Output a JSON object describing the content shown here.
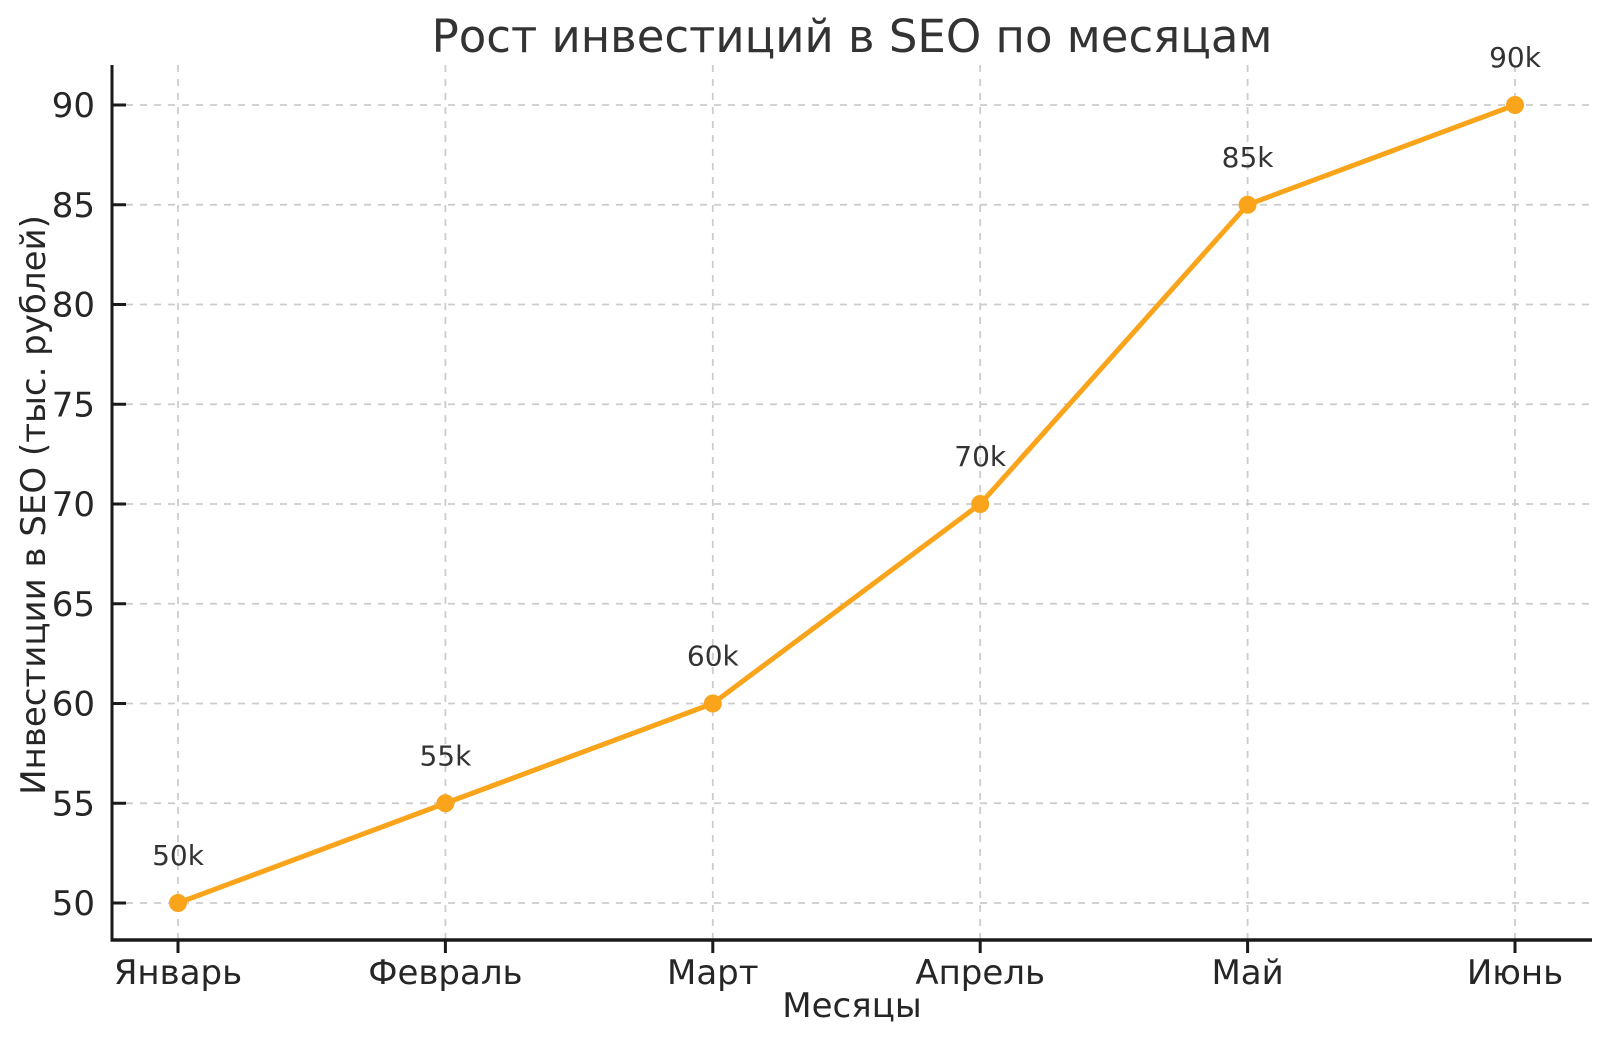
{
  "figure": {
    "title": "Рост инвестиций в SEO по месяцам",
    "xlabel": "Месяцы",
    "ylabel": "Инвестиции в SEO (тыс. рублей)"
  },
  "chart_data": {
    "type": "line",
    "title": "Рост инвестиций в SEO по месяцам",
    "xlabel": "Месяцы",
    "ylabel": "Инвестиции в SEO (тыс. рублей)",
    "categories": [
      "Январь",
      "Февраль",
      "Март",
      "Апрель",
      "Май",
      "Июнь"
    ],
    "series": [
      {
        "name": "Инвестиции в SEO",
        "values": [
          50,
          55,
          60,
          70,
          85,
          90
        ]
      }
    ],
    "point_labels": [
      "50k",
      "55k",
      "60k",
      "70k",
      "85k",
      "90k"
    ],
    "yticks": [
      50,
      55,
      60,
      65,
      70,
      75,
      80,
      85,
      90
    ],
    "ylim": [
      48.2,
      92.1
    ],
    "grid": true,
    "grid_style": "dashed",
    "legend_position": "none",
    "colors": {
      "line": "#FAA41B",
      "marker": "#FAA41B",
      "grid": "#cccccc",
      "axis": "#1a1a1a",
      "tick_text": "#262626",
      "annotation_text": "#333333",
      "background": "#ffffff"
    }
  }
}
